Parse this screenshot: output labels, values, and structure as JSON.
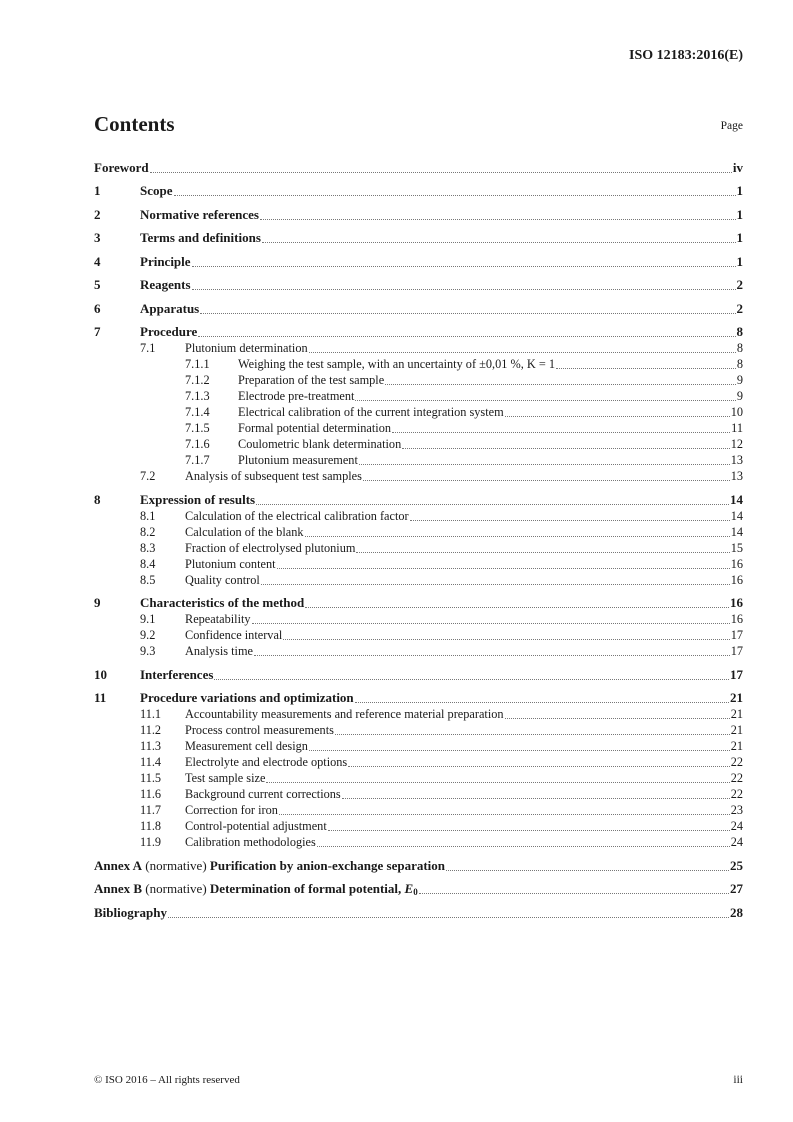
{
  "header": {
    "doc_id": "ISO 12183:2016(E)"
  },
  "title": "Contents",
  "page_label": "Page",
  "entries": [
    {
      "level": 1,
      "num": "",
      "label": "Foreword",
      "page": "iv"
    },
    {
      "level": 1,
      "num": "1",
      "label": "Scope",
      "page": "1"
    },
    {
      "level": 1,
      "num": "2",
      "label": "Normative references",
      "page": "1"
    },
    {
      "level": 1,
      "num": "3",
      "label": "Terms and definitions",
      "page": "1"
    },
    {
      "level": 1,
      "num": "4",
      "label": "Principle",
      "page": "1"
    },
    {
      "level": 1,
      "num": "5",
      "label": "Reagents",
      "page": "2"
    },
    {
      "level": 1,
      "num": "6",
      "label": "Apparatus",
      "page": "2"
    },
    {
      "level": 1,
      "num": "7",
      "label": "Procedure",
      "page": "8"
    },
    {
      "level": 2,
      "num": "7.1",
      "label": "Plutonium determination",
      "page": "8"
    },
    {
      "level": 3,
      "num": "7.1.1",
      "label": "Weighing the test sample, with an uncertainty of ±0,01 %, K = 1",
      "page": "8"
    },
    {
      "level": 3,
      "num": "7.1.2",
      "label": "Preparation of the test sample",
      "page": "9"
    },
    {
      "level": 3,
      "num": "7.1.3",
      "label": "Electrode pre-treatment",
      "page": "9"
    },
    {
      "level": 3,
      "num": "7.1.4",
      "label": "Electrical calibration of the current integration system",
      "page": "10"
    },
    {
      "level": 3,
      "num": "7.1.5",
      "label": "Formal potential determination",
      "page": "11"
    },
    {
      "level": 3,
      "num": "7.1.6",
      "label": "Coulometric blank determination",
      "page": "12"
    },
    {
      "level": 3,
      "num": "7.1.7",
      "label": "Plutonium measurement",
      "page": "13"
    },
    {
      "level": 2,
      "num": "7.2",
      "label": "Analysis of subsequent test samples",
      "page": "13"
    },
    {
      "level": 1,
      "num": "8",
      "label": "Expression of results",
      "page": "14"
    },
    {
      "level": 2,
      "num": "8.1",
      "label": "Calculation of the electrical calibration factor",
      "page": "14"
    },
    {
      "level": 2,
      "num": "8.2",
      "label": "Calculation of the blank",
      "page": "14"
    },
    {
      "level": 2,
      "num": "8.3",
      "label": "Fraction of electrolysed plutonium",
      "page": "15"
    },
    {
      "level": 2,
      "num": "8.4",
      "label": "Plutonium content",
      "page": "16"
    },
    {
      "level": 2,
      "num": "8.5",
      "label": "Quality control",
      "page": "16"
    },
    {
      "level": 1,
      "num": "9",
      "label": "Characteristics of the method",
      "page": "16"
    },
    {
      "level": 2,
      "num": "9.1",
      "label": "Repeatability",
      "page": "16"
    },
    {
      "level": 2,
      "num": "9.2",
      "label": "Confidence interval",
      "page": "17"
    },
    {
      "level": 2,
      "num": "9.3",
      "label": "Analysis time",
      "page": "17"
    },
    {
      "level": 1,
      "num": "10",
      "label": "Interferences",
      "page": "17"
    },
    {
      "level": 1,
      "num": "11",
      "label": "Procedure variations and optimization",
      "page": "21"
    },
    {
      "level": 2,
      "num": "11.1",
      "label": "Accountability measurements and reference material preparation",
      "page": "21"
    },
    {
      "level": 2,
      "num": "11.2",
      "label": "Process control measurements",
      "page": "21"
    },
    {
      "level": 2,
      "num": "11.3",
      "label": "Measurement cell design",
      "page": "21"
    },
    {
      "level": 2,
      "num": "11.4",
      "label": "Electrolyte and electrode options",
      "page": "22"
    },
    {
      "level": 2,
      "num": "11.5",
      "label": "Test sample size",
      "page": "22"
    },
    {
      "level": 2,
      "num": "11.6",
      "label": "Background current corrections",
      "page": "22"
    },
    {
      "level": 2,
      "num": "11.7",
      "label": "Correction for iron",
      "page": "23"
    },
    {
      "level": 2,
      "num": "11.8",
      "label": "Control-potential adjustment",
      "page": "24"
    },
    {
      "level": 2,
      "num": "11.9",
      "label": "Calibration methodologies",
      "page": "24"
    }
  ],
  "annexes": [
    {
      "name": "Annex A",
      "type": "(normative)",
      "label": "Purification by anion-exchange separation",
      "sub": "",
      "page": "25"
    },
    {
      "name": "Annex B",
      "type": "(normative)",
      "label": "Determination of formal potential, E",
      "sub": "0",
      "page": "27"
    }
  ],
  "bibliography": {
    "label": "Bibliography",
    "page": "28"
  },
  "footer": {
    "copyright": "© ISO 2016 – All rights reserved",
    "page": "iii"
  }
}
